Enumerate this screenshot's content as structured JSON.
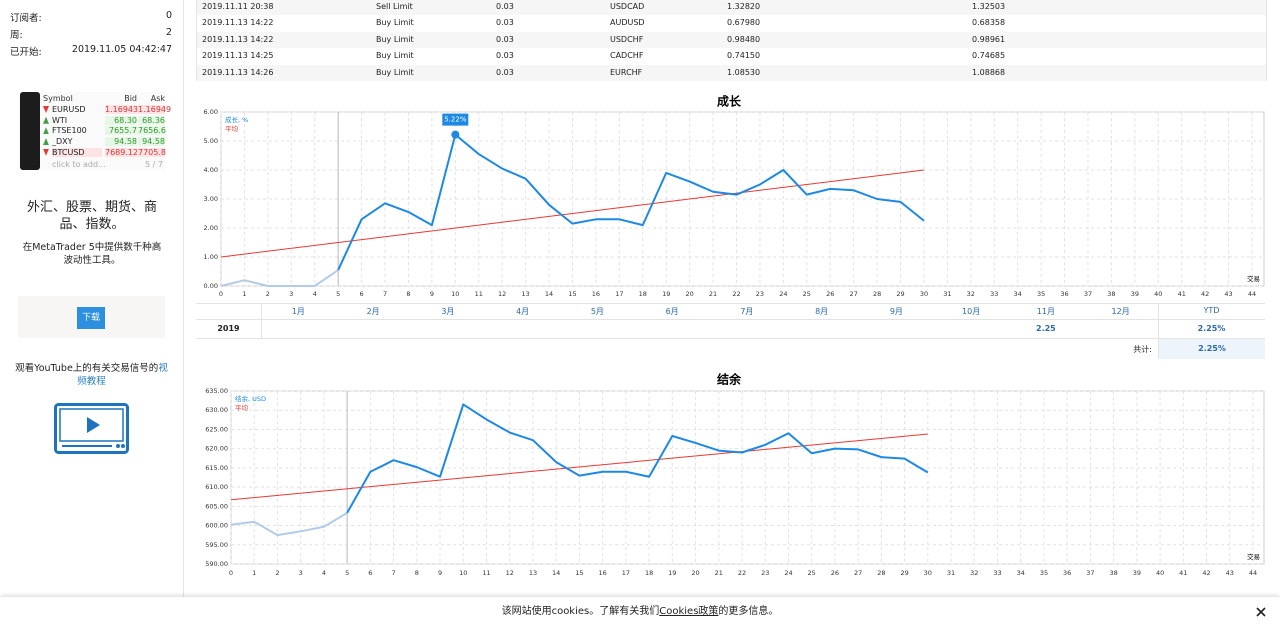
{
  "sidebar": {
    "stats": [
      {
        "label": "订阅者:",
        "value": "0"
      },
      {
        "label": "周:",
        "value": "2"
      },
      {
        "label": "已开始:",
        "value": "2019.11.05 04:42:47"
      }
    ],
    "widget": {
      "headers": [
        "Symbol",
        "Bid",
        "Ask"
      ],
      "rows": [
        [
          "EURUSD",
          "1.16943",
          "1.16949"
        ],
        [
          "WTI",
          "68.30",
          "68.36"
        ],
        [
          "FTSE100",
          "7655.7",
          "7656.6"
        ],
        [
          "_DXY",
          "94.58",
          "94.58"
        ],
        [
          "BTCUSD",
          "7689.12",
          "7705.8"
        ]
      ],
      "add": "click to add...",
      "count": "5 / 7"
    },
    "promo_title": "外汇、股票、期货、商品、指数。",
    "promo_text": "在MetaTrader 5中提供数千种高波动性工具。",
    "download": "下载",
    "video_text": "观看YouTube上的有关交易信号的",
    "video_link": "视频教程"
  },
  "orders": {
    "rows": [
      [
        "2019.11.11 20:38",
        "Sell Limit",
        "0.03",
        "USDCAD",
        "1.32820",
        "1.32503"
      ],
      [
        "2019.11.13 14:22",
        "Buy Limit",
        "0.03",
        "AUDUSD",
        "0.67980",
        "0.68358"
      ],
      [
        "2019.11.13 14:22",
        "Buy Limit",
        "0.03",
        "USDCHF",
        "0.98480",
        "0.98961"
      ],
      [
        "2019.11.13 14:25",
        "Buy Limit",
        "0.03",
        "CADCHF",
        "0.74150",
        "0.74685"
      ],
      [
        "2019.11.13 14:26",
        "Buy Limit",
        "0.03",
        "EURCHF",
        "1.08530",
        "1.08868"
      ]
    ]
  },
  "monthly": {
    "months": [
      "1月",
      "2月",
      "3月",
      "4月",
      "5月",
      "6月",
      "7月",
      "8月",
      "9月",
      "10月",
      "11月",
      "12月"
    ],
    "ytd_header": "YTD",
    "year": "2019",
    "values": [
      null,
      null,
      null,
      null,
      null,
      null,
      null,
      null,
      null,
      null,
      2.25,
      null
    ],
    "ytd": "2.25%",
    "total_label": "共计:",
    "total": "2.25%"
  },
  "chart_data": [
    {
      "type": "line",
      "title": "成长",
      "xlabel": "交易",
      "grid": true,
      "marker_x": 5,
      "pre_color": "#b3cbe6",
      "xlim": [
        0,
        44
      ],
      "xticks": [
        0,
        1,
        2,
        3,
        4,
        5,
        6,
        7,
        8,
        9,
        10,
        11,
        12,
        13,
        14,
        15,
        16,
        17,
        18,
        19,
        20,
        21,
        22,
        23,
        24,
        25,
        26,
        27,
        28,
        29,
        30,
        31,
        32,
        33,
        34,
        35,
        36,
        37,
        38,
        39,
        40,
        41,
        42,
        43,
        44
      ],
      "ylim": [
        0,
        6
      ],
      "yticks": [
        {
          "value": 0,
          "label": "0.00"
        },
        {
          "value": 1,
          "label": "1.00"
        },
        {
          "value": 2,
          "label": "2.00"
        },
        {
          "value": 3,
          "label": "3.00"
        },
        {
          "value": 4,
          "label": "4.00"
        },
        {
          "value": 5,
          "label": "5.00"
        },
        {
          "value": 6,
          "label": "6.00"
        }
      ],
      "series": [
        {
          "name": "成长, %",
          "color": "#1e88e5",
          "x": [
            0,
            1,
            2,
            3,
            4,
            5,
            6,
            7,
            8,
            9,
            10,
            11,
            12,
            13,
            14,
            15,
            16,
            17,
            18,
            19,
            20,
            21,
            22,
            23,
            24,
            25,
            26,
            27,
            28,
            29,
            30
          ],
          "values": [
            0,
            0.2,
            0,
            0,
            0,
            0.55,
            2.3,
            2.85,
            2.55,
            2.1,
            5.22,
            4.55,
            4.05,
            3.7,
            2.8,
            2.15,
            2.3,
            2.3,
            2.1,
            3.9,
            3.6,
            3.25,
            3.15,
            3.5,
            4.0,
            3.15,
            3.35,
            3.3,
            3.0,
            2.9,
            2.25
          ]
        }
      ],
      "average": {
        "name": "平均",
        "color": "#e53935",
        "x": [
          0,
          30
        ],
        "values": [
          1.0,
          4.0
        ]
      },
      "annotations": [
        {
          "x": 10,
          "label": "5.22%"
        }
      ]
    },
    {
      "type": "line",
      "title": "结余",
      "xlabel": "交易",
      "grid": true,
      "marker_x": 5,
      "pre_color": "#b3cbe6",
      "xlim": [
        0,
        44
      ],
      "xticks": [
        0,
        1,
        2,
        3,
        4,
        5,
        6,
        7,
        8,
        9,
        10,
        11,
        12,
        13,
        14,
        15,
        16,
        17,
        18,
        19,
        20,
        21,
        22,
        23,
        24,
        25,
        26,
        27,
        28,
        29,
        30,
        31,
        32,
        33,
        34,
        35,
        36,
        37,
        38,
        39,
        40,
        41,
        42,
        43,
        44
      ],
      "ylim": [
        590,
        635
      ],
      "yticks": [
        {
          "value": 590,
          "label": "590.00"
        },
        {
          "value": 595,
          "label": "595.00"
        },
        {
          "value": 600,
          "label": "600.00"
        },
        {
          "value": 605,
          "label": "605.00"
        },
        {
          "value": 610,
          "label": "610.00"
        },
        {
          "value": 615,
          "label": "615.00"
        },
        {
          "value": 620,
          "label": "620.00"
        },
        {
          "value": 625,
          "label": "625.00"
        },
        {
          "value": 630,
          "label": "630.00"
        },
        {
          "value": 635,
          "label": "635.00"
        }
      ],
      "series": [
        {
          "name": "结余, USD",
          "color": "#1e88e5",
          "x": [
            0,
            1,
            2,
            3,
            4,
            5,
            6,
            7,
            8,
            9,
            10,
            11,
            12,
            13,
            14,
            15,
            16,
            17,
            18,
            19,
            20,
            21,
            22,
            23,
            24,
            25,
            26,
            27,
            28,
            29,
            30
          ],
          "values": [
            600.2,
            601,
            597.5,
            598.5,
            599.7,
            603.3,
            614,
            617,
            615.2,
            612.7,
            631.5,
            627.6,
            624.2,
            622.2,
            616.5,
            613,
            614,
            614,
            612.7,
            623.3,
            621.5,
            619.5,
            619,
            621,
            624,
            618.8,
            620,
            619.8,
            617.8,
            617.4,
            613.8
          ]
        }
      ],
      "average": {
        "name": "平均",
        "color": "#e53935",
        "x": [
          0,
          30
        ],
        "values": [
          606.7,
          623.8
        ]
      }
    }
  ],
  "cookie": {
    "before": "该网站使用cookies。了解有关我们",
    "link": "Cookies政策",
    "after": "的更多信息。"
  }
}
